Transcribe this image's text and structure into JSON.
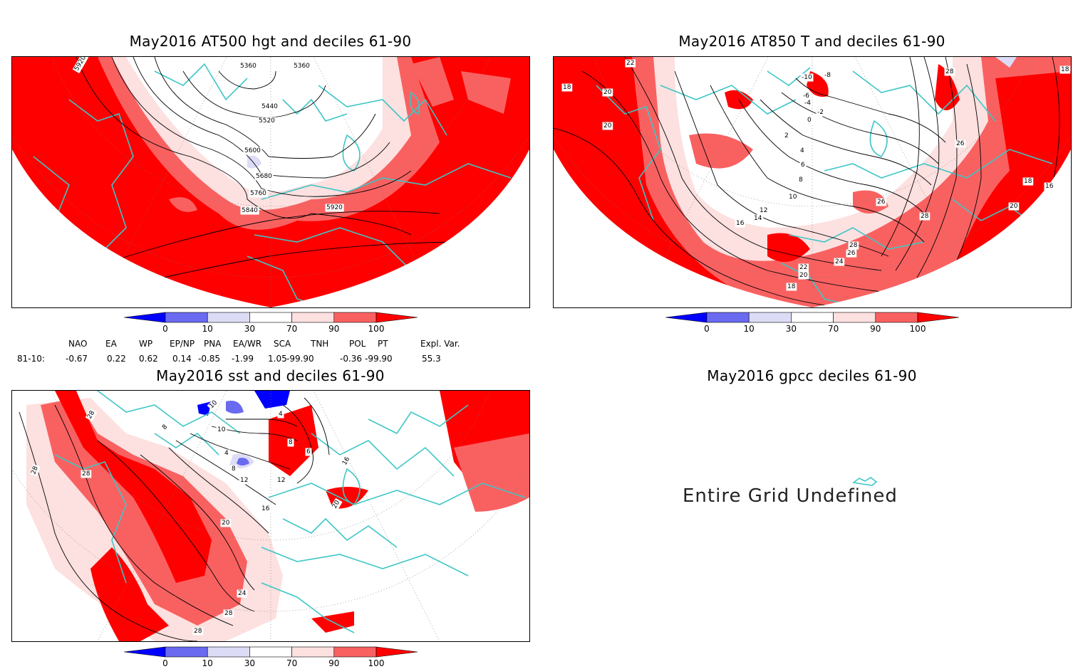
{
  "colors": {
    "dec_100": "#ff0000",
    "dec_90": "#f96161",
    "dec_70": "#fde0e0",
    "dec_mid": "#ffffff",
    "dec_30": "#dcdcf6",
    "dec_10": "#6a6af0",
    "dec_0": "#0000ff",
    "coast": "#3ec6c6",
    "contour": "#000000"
  },
  "colorbar": {
    "ticks": [
      "0",
      "10",
      "30",
      "70",
      "90",
      "100"
    ]
  },
  "panels": {
    "hgt": {
      "title": "May2016 AT500 hgt and deciles 61-90",
      "contour_labels": [
        "5920",
        "5360",
        "5360",
        "5440",
        "5520",
        "5600",
        "5680",
        "5760",
        "5840",
        "5920"
      ]
    },
    "t850": {
      "title": "May2016 AT850 T and deciles 61-90",
      "contour_labels": [
        "22",
        "18",
        "18",
        "20",
        "20",
        "-10",
        "-8",
        "-6",
        "-4",
        "-2",
        "0",
        "2",
        "4",
        "6",
        "8",
        "10",
        "12",
        "14",
        "16",
        "18",
        "20",
        "22",
        "24",
        "26",
        "28",
        "28",
        "26",
        "18",
        "26",
        "28",
        "16",
        "20"
      ]
    },
    "sst": {
      "title": "May2016 sst and deciles 61-90",
      "contour_labels": [
        "28",
        "28",
        "28",
        "8",
        "10",
        "10",
        "4",
        "4",
        "8",
        "6",
        "12",
        "8",
        "12",
        "16",
        "20",
        "16",
        "20",
        "24",
        "28",
        "28"
      ]
    },
    "gpcc": {
      "title": "May2016 gpcc deciles 61-90",
      "message": "Entire Grid Undefined"
    }
  },
  "indices": {
    "names": [
      "NAO",
      "EA",
      "WP",
      "EP/NP",
      "PNA",
      "EA/WR",
      "SCA",
      "TNH",
      "POL",
      "PT",
      "Expl. Var."
    ],
    "row_label": "81-10:",
    "values": [
      "-0.67",
      "0.22",
      "0.62",
      "0.14",
      "-0.85",
      "-1.99",
      "1.05",
      "-99.90",
      "-0.36",
      "-99.90",
      "55.3"
    ]
  }
}
